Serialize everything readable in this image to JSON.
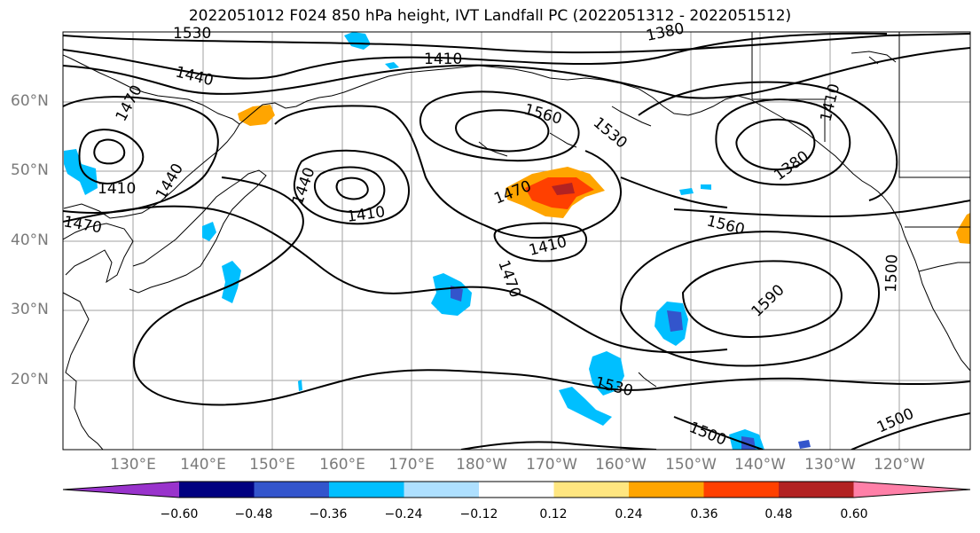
{
  "title": "2022051012 F024 850 hPa height, IVT Landfall PC (2022051312 - 2022051512)",
  "lat_labels": [
    "60°N",
    "50°N",
    "40°N",
    "30°N",
    "20°N"
  ],
  "lon_labels": [
    "130°E",
    "140°E",
    "150°E",
    "160°E",
    "170°E",
    "180°W",
    "170°W",
    "160°W",
    "150°W",
    "140°W",
    "130°W",
    "120°W"
  ],
  "contour_labels": [
    "1530",
    "1380",
    "1410",
    "1440",
    "1470",
    "1410",
    "1440",
    "1470",
    "1410",
    "1440",
    "1470",
    "1410",
    "1470",
    "1560",
    "1530",
    "1380",
    "1410",
    "1440",
    "1410",
    "1560",
    "1590",
    "1500",
    "1530",
    "1500",
    "1500"
  ],
  "colorbar": {
    "ticks": [
      "−0.60",
      "−0.48",
      "−0.36",
      "−0.24",
      "−0.12",
      "0.12",
      "0.24",
      "0.36",
      "0.48",
      "0.60"
    ],
    "colors": [
      "#9933cc",
      "#000080",
      "#3355cc",
      "#00bfff",
      "#aee0ff",
      "#ffffff",
      "#ffe680",
      "#ffa500",
      "#ff4000",
      "#b22222",
      "#ff80a8"
    ]
  }
}
